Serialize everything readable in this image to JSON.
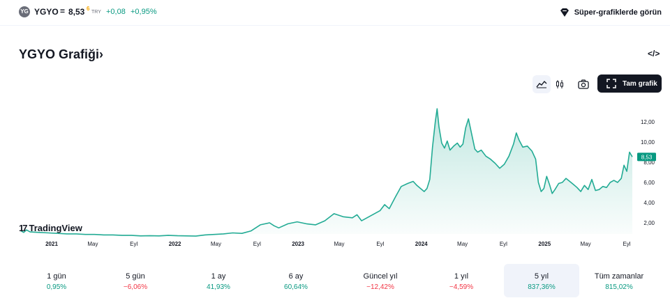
{
  "header": {
    "logo_text": "YG",
    "symbol": "YGYO",
    "eq": "=",
    "price": "8,53",
    "price_sup": "6",
    "currency": "TRY",
    "change": "+0,08",
    "change_pct": "+0,95%",
    "super_label": "Süper-grafiklerde görün"
  },
  "title": "YGYO Grafiği",
  "title_chevron": "›",
  "embed_label": "</>",
  "toolbar": {
    "full_label": "Tam grafik",
    "icons": [
      "area-chart-icon",
      "candles-icon",
      "camera-icon",
      "fullscreen-icon"
    ]
  },
  "chart_data": {
    "type": "area",
    "x_ticks": [
      "2021",
      "May",
      "Eyl",
      "2022",
      "May",
      "Eyl",
      "2023",
      "May",
      "Eyl",
      "2024",
      "May",
      "Eyl",
      "2025",
      "May",
      "Eyl"
    ],
    "x_ticks_bold": [
      "2021",
      "2022",
      "2023",
      "2024",
      "2025"
    ],
    "y_ticks": [
      "12,00",
      "10,00",
      "8,00",
      "6,00",
      "4,00",
      "2,00"
    ],
    "ylim": [
      0.9,
      14.2
    ],
    "last_value_label": "8,53",
    "line_color": "#22ab94",
    "series": [
      {
        "x": 0,
        "y": 1.2
      },
      {
        "x": 0.3,
        "y": 1.05
      },
      {
        "x": 0.6,
        "y": 1.3
      },
      {
        "x": 1,
        "y": 1.1
      },
      {
        "x": 2,
        "y": 1.05
      },
      {
        "x": 3,
        "y": 1.0
      },
      {
        "x": 4,
        "y": 0.95
      },
      {
        "x": 5,
        "y": 0.9
      },
      {
        "x": 6,
        "y": 0.9
      },
      {
        "x": 7,
        "y": 0.85
      },
      {
        "x": 8,
        "y": 0.85
      },
      {
        "x": 9,
        "y": 0.8
      },
      {
        "x": 10,
        "y": 0.8
      },
      {
        "x": 11,
        "y": 0.75
      },
      {
        "x": 12,
        "y": 0.75
      },
      {
        "x": 13,
        "y": 0.7
      },
      {
        "x": 14,
        "y": 0.72
      },
      {
        "x": 15,
        "y": 0.7
      },
      {
        "x": 16,
        "y": 0.75
      },
      {
        "x": 17,
        "y": 0.72
      },
      {
        "x": 18,
        "y": 0.7
      },
      {
        "x": 19,
        "y": 0.68
      },
      {
        "x": 20,
        "y": 0.8
      },
      {
        "x": 21,
        "y": 0.85
      },
      {
        "x": 22,
        "y": 0.9
      },
      {
        "x": 23,
        "y": 1.0
      },
      {
        "x": 24,
        "y": 0.95
      },
      {
        "x": 25,
        "y": 1.2
      },
      {
        "x": 26,
        "y": 1.8
      },
      {
        "x": 27,
        "y": 2.0
      },
      {
        "x": 27.5,
        "y": 1.7
      },
      {
        "x": 28,
        "y": 1.5
      },
      {
        "x": 29,
        "y": 1.9
      },
      {
        "x": 30,
        "y": 2.1
      },
      {
        "x": 31,
        "y": 1.9
      },
      {
        "x": 32,
        "y": 1.8
      },
      {
        "x": 33,
        "y": 2.2
      },
      {
        "x": 34,
        "y": 2.9
      },
      {
        "x": 35,
        "y": 2.6
      },
      {
        "x": 36,
        "y": 2.5
      },
      {
        "x": 36.5,
        "y": 2.8
      },
      {
        "x": 37,
        "y": 2.2
      },
      {
        "x": 38,
        "y": 2.7
      },
      {
        "x": 39,
        "y": 3.2
      },
      {
        "x": 39.5,
        "y": 3.8
      },
      {
        "x": 40,
        "y": 3.4
      },
      {
        "x": 40.7,
        "y": 4.6
      },
      {
        "x": 41.3,
        "y": 5.6
      },
      {
        "x": 42,
        "y": 5.9
      },
      {
        "x": 42.6,
        "y": 6.1
      },
      {
        "x": 43,
        "y": 5.7
      },
      {
        "x": 43.4,
        "y": 5.4
      },
      {
        "x": 43.8,
        "y": 5.1
      },
      {
        "x": 44.1,
        "y": 5.4
      },
      {
        "x": 44.4,
        "y": 6.3
      },
      {
        "x": 44.7,
        "y": 9.5
      },
      {
        "x": 45,
        "y": 12.0
      },
      {
        "x": 45.2,
        "y": 13.3
      },
      {
        "x": 45.4,
        "y": 11.5
      },
      {
        "x": 45.7,
        "y": 9.9
      },
      {
        "x": 46,
        "y": 9.4
      },
      {
        "x": 46.3,
        "y": 10.1
      },
      {
        "x": 46.6,
        "y": 9.2
      },
      {
        "x": 47,
        "y": 9.6
      },
      {
        "x": 47.4,
        "y": 9.9
      },
      {
        "x": 47.7,
        "y": 9.5
      },
      {
        "x": 48,
        "y": 9.8
      },
      {
        "x": 48.3,
        "y": 11.4
      },
      {
        "x": 48.6,
        "y": 12.3
      },
      {
        "x": 49,
        "y": 10.6
      },
      {
        "x": 49.3,
        "y": 9.3
      },
      {
        "x": 49.6,
        "y": 9.0
      },
      {
        "x": 50,
        "y": 9.2
      },
      {
        "x": 50.5,
        "y": 8.6
      },
      {
        "x": 51,
        "y": 8.3
      },
      {
        "x": 51.5,
        "y": 7.9
      },
      {
        "x": 52,
        "y": 7.4
      },
      {
        "x": 52.5,
        "y": 7.8
      },
      {
        "x": 53,
        "y": 8.6
      },
      {
        "x": 53.5,
        "y": 9.8
      },
      {
        "x": 53.8,
        "y": 10.9
      },
      {
        "x": 54.1,
        "y": 10.2
      },
      {
        "x": 54.5,
        "y": 9.5
      },
      {
        "x": 55,
        "y": 9.6
      },
      {
        "x": 55.5,
        "y": 9.1
      },
      {
        "x": 55.9,
        "y": 8.3
      },
      {
        "x": 56.2,
        "y": 6.0
      },
      {
        "x": 56.5,
        "y": 5.1
      },
      {
        "x": 56.8,
        "y": 5.4
      },
      {
        "x": 57.1,
        "y": 6.6
      },
      {
        "x": 57.4,
        "y": 5.8
      },
      {
        "x": 57.7,
        "y": 4.9
      },
      {
        "x": 58,
        "y": 5.3
      },
      {
        "x": 58.4,
        "y": 5.9
      },
      {
        "x": 58.8,
        "y": 6.0
      },
      {
        "x": 59.2,
        "y": 6.4
      },
      {
        "x": 59.6,
        "y": 6.1
      },
      {
        "x": 60,
        "y": 5.8
      },
      {
        "x": 60.4,
        "y": 5.5
      },
      {
        "x": 60.8,
        "y": 5.1
      },
      {
        "x": 61.2,
        "y": 5.7
      },
      {
        "x": 61.6,
        "y": 5.3
      },
      {
        "x": 62,
        "y": 6.3
      },
      {
        "x": 62.4,
        "y": 5.2
      },
      {
        "x": 62.8,
        "y": 5.3
      },
      {
        "x": 63.2,
        "y": 5.6
      },
      {
        "x": 63.6,
        "y": 5.5
      },
      {
        "x": 64,
        "y": 6.0
      },
      {
        "x": 64.4,
        "y": 6.2
      },
      {
        "x": 64.8,
        "y": 6.0
      },
      {
        "x": 65.2,
        "y": 6.4
      },
      {
        "x": 65.5,
        "y": 7.7
      },
      {
        "x": 65.8,
        "y": 7.1
      },
      {
        "x": 66.1,
        "y": 9.0
      },
      {
        "x": 66.4,
        "y": 8.53
      }
    ],
    "x_domain": [
      0,
      66.4
    ]
  },
  "periods": [
    {
      "label": "1 gün",
      "value": "0,95%",
      "sign": "pos"
    },
    {
      "label": "5 gün",
      "value": "−6,06%",
      "sign": "neg"
    },
    {
      "label": "1 ay",
      "value": "41,93%",
      "sign": "pos"
    },
    {
      "label": "6 ay",
      "value": "60,64%",
      "sign": "pos"
    },
    {
      "label": "Güncel yıl",
      "value": "−12,42%",
      "sign": "neg"
    },
    {
      "label": "1 yıl",
      "value": "−4,59%",
      "sign": "neg"
    },
    {
      "label": "5 yıl",
      "value": "837,36%",
      "sign": "pos",
      "selected": true
    },
    {
      "label": "Tüm zamanlar",
      "value": "815,02%",
      "sign": "pos"
    }
  ],
  "watermark": "TradingView",
  "watermark_mark": "17"
}
